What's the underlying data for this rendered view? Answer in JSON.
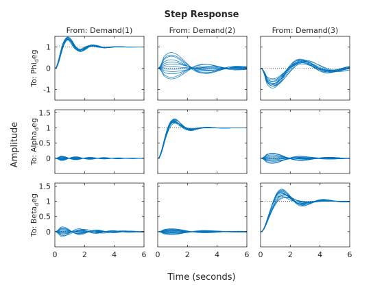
{
  "chart_data": {
    "type": "line",
    "title": "Step Response",
    "xlabel": "Time (seconds)",
    "ylabel": "Amplitude",
    "xlim": [
      0,
      6
    ],
    "x_ticks": [
      0,
      2,
      4,
      6
    ],
    "columns": [
      "From: Demand(1)",
      "From: Demand(2)",
      "From: Demand(3)"
    ],
    "rows": [
      {
        "label": "To: Phi",
        "label_sub": "d",
        "label_tail": "eg",
        "ylim": [
          -1.5,
          1.5
        ],
        "y_ticks": [
          -1,
          0,
          1
        ]
      },
      {
        "label": "To: Alpha",
        "label_sub": "d",
        "label_tail": "eg",
        "ylim": [
          -0.5,
          1.6
        ],
        "y_ticks": [
          0,
          0.5,
          1,
          1.5
        ]
      },
      {
        "label": "To: Beta",
        "label_sub": "d",
        "label_tail": "eg",
        "ylim": [
          -0.5,
          1.6
        ],
        "y_ticks": [
          0,
          0.5,
          1,
          1.5
        ]
      }
    ],
    "line_color": "#0072bd",
    "ref_line_color": "#404040",
    "series_per_panel": 12,
    "panels": [
      {
        "row": 0,
        "col": 0,
        "kind": "step",
        "final": 1,
        "peak": [
          1.33,
          1.47
        ],
        "peak_time": 0.8
      },
      {
        "row": 0,
        "col": 1,
        "kind": "coupling",
        "amp": [
          -0.8,
          1.2
        ],
        "peak_time": 1.2
      },
      {
        "row": 0,
        "col": 2,
        "kind": "coupling",
        "amp": [
          -1.35,
          -0.75
        ],
        "peak_time": 1.0
      },
      {
        "row": 1,
        "col": 0,
        "kind": "coupling",
        "amp": [
          -0.09,
          0.09
        ],
        "peak_time": 0.5
      },
      {
        "row": 1,
        "col": 1,
        "kind": "step",
        "final": 1,
        "peak": [
          1.16,
          1.3
        ],
        "peak_time": 1.0
      },
      {
        "row": 1,
        "col": 2,
        "kind": "coupling",
        "amp": [
          -0.25,
          0.25
        ],
        "peak_time": 1.0
      },
      {
        "row": 2,
        "col": 0,
        "kind": "coupling",
        "amp": [
          -0.2,
          0.2
        ],
        "peak_time": 0.6
      },
      {
        "row": 2,
        "col": 1,
        "kind": "coupling",
        "amp": [
          -0.15,
          0.15
        ],
        "peak_time": 1.2
      },
      {
        "row": 2,
        "col": 2,
        "kind": "step",
        "final": 1,
        "peak": [
          1.12,
          1.4
        ],
        "peak_time": 1.3
      }
    ]
  }
}
